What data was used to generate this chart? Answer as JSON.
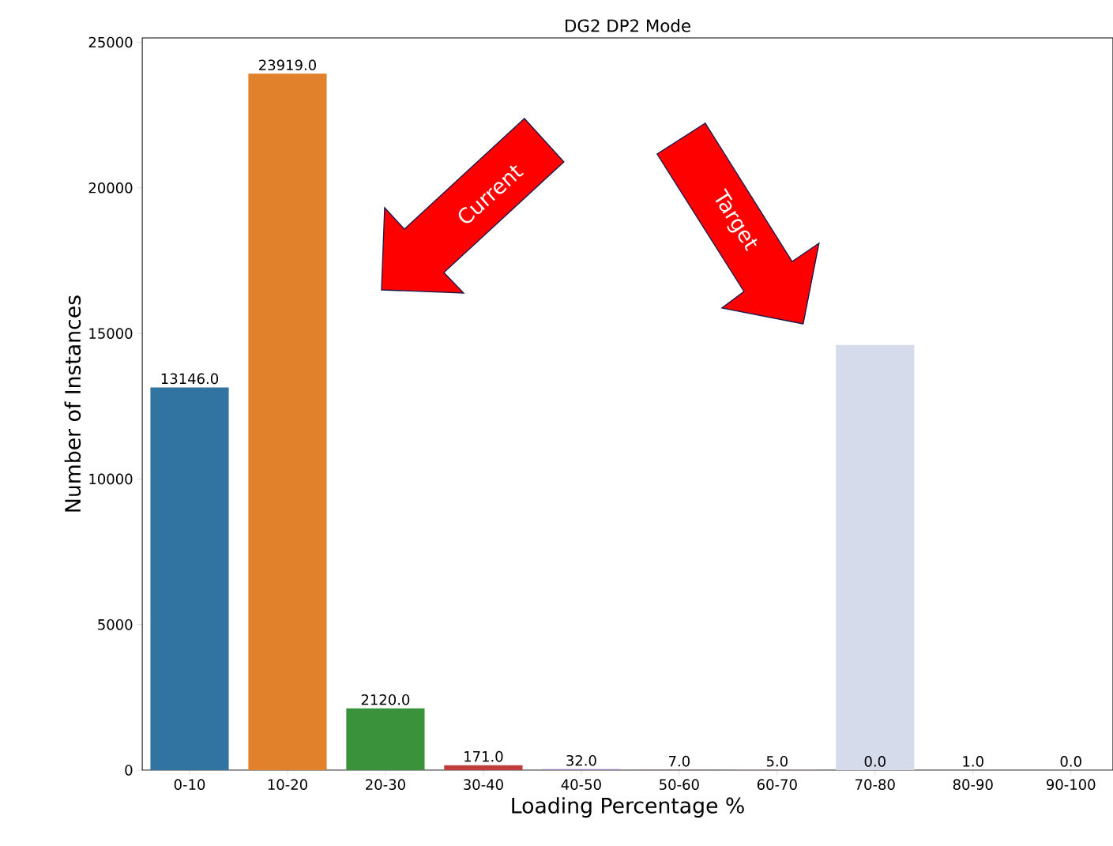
{
  "chart_data": {
    "type": "bar",
    "title": "DG2 DP2 Mode",
    "xlabel": "Loading Percentage %",
    "ylabel": "Number of Instances",
    "categories": [
      "0-10",
      "10-20",
      "20-30",
      "30-40",
      "40-50",
      "50-60",
      "60-70",
      "70-80",
      "80-90",
      "90-100"
    ],
    "series": [
      {
        "values": [
          13146,
          23919,
          2120,
          171,
          32,
          7,
          5,
          0,
          1,
          0
        ],
        "colors": [
          "#3274a1",
          "#e1812c",
          "#3a923a",
          "#c03d3e",
          "#9372b2",
          "#845b53",
          "#d684bd",
          "#7f7f7f",
          "#a9aa35",
          "#2e9ebe"
        ],
        "value_labels": [
          "13146.0",
          "23919.0",
          "2120.0",
          "171.0",
          "32.0",
          "7.0",
          "5.0",
          "0.0",
          "1.0",
          "0.0"
        ]
      },
      {
        "values": [
          null,
          null,
          null,
          null,
          null,
          null,
          null,
          14600,
          null,
          null
        ],
        "color": "#d5dbea"
      }
    ],
    "annotations": [
      "Current",
      "Target"
    ],
    "ylim": [
      0,
      25150
    ],
    "yticks": [
      0,
      5000,
      10000,
      15000,
      20000,
      25000
    ]
  }
}
